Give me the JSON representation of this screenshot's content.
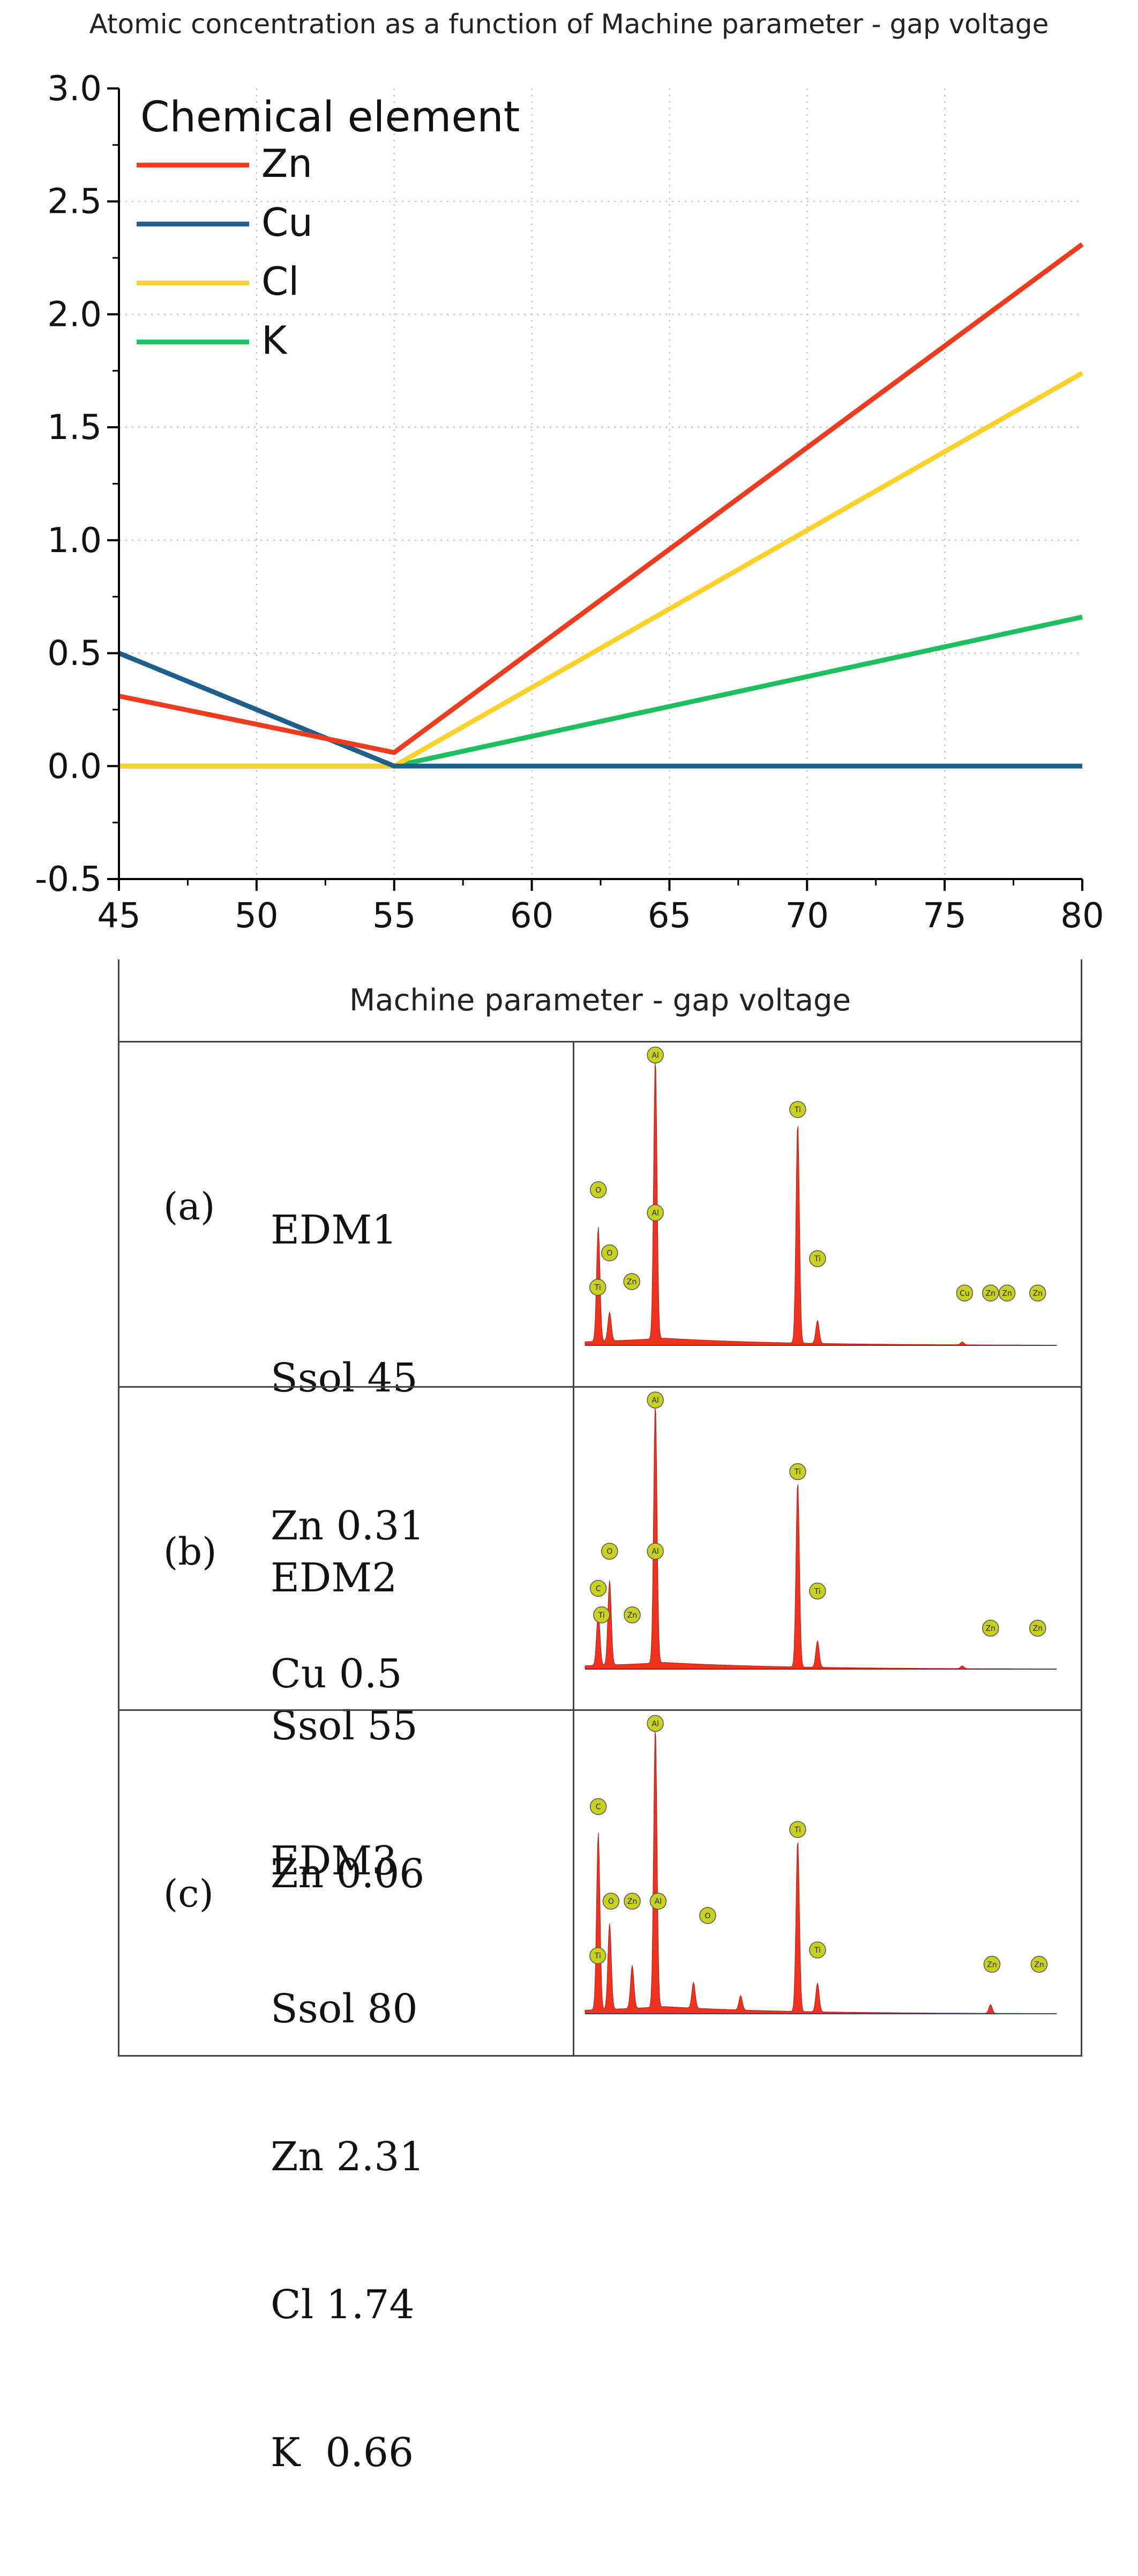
{
  "chart_data": {
    "type": "line",
    "title": "Atomic concentration as a function of Machine parameter - gap voltage",
    "xlabel": "Machine parameter - gap voltage",
    "ylabel": "",
    "x": [
      45,
      55,
      80
    ],
    "xlim": [
      45,
      80
    ],
    "ylim": [
      -0.5,
      3.0
    ],
    "xticks": [
      "45",
      "50",
      "55",
      "60",
      "65",
      "70",
      "75",
      "80"
    ],
    "yticks": [
      "3.0",
      "2.5",
      "2.0",
      "1.5",
      "1.0",
      "0.5",
      "0.0",
      "-0.5"
    ],
    "grid": true,
    "legend_title": "Chemical element",
    "legend_position": "top-left",
    "series": [
      {
        "name": "Zn",
        "color": "#f03c1e",
        "values": [
          0.31,
          0.06,
          2.31
        ]
      },
      {
        "name": "Cu",
        "color": "#1f5f8b",
        "values": [
          0.5,
          0.0,
          0.0
        ]
      },
      {
        "name": "Cl",
        "color": "#fcd12a",
        "values": [
          0.0,
          0.0,
          1.74
        ]
      },
      {
        "name": "K",
        "color": "#1dbf5e",
        "values": [
          0.0,
          0.0,
          0.66
        ]
      }
    ]
  },
  "table": {
    "rows": [
      {
        "tag": "(a)",
        "lines": [
          "EDM1",
          "Ssol 45",
          "Zn 0.31",
          "Cu 0.5"
        ],
        "spectrum": {
          "peak_labels": [
            "Al",
            "Ti",
            "O",
            "Al",
            "O",
            "Ti",
            "Zn",
            "Ti",
            "Cu",
            "Zn",
            "Zn",
            "Zn"
          ]
        }
      },
      {
        "tag": "(b)",
        "lines": [
          "EDM2",
          "Ssol 55",
          "Zn 0.06"
        ],
        "spectrum": {
          "peak_labels": [
            "Al",
            "Ti",
            "O",
            "Al",
            "C",
            "Ti",
            "Zn",
            "Ti",
            "Zn",
            "Zn"
          ]
        }
      },
      {
        "tag": "(c)",
        "lines": [
          "EDM3",
          "Ssol 80",
          "Zn 2.31",
          "Cl 1.74",
          "K  0.66"
        ],
        "spectrum": {
          "peak_labels": [
            "Al",
            "C",
            "Ti",
            "O",
            "Al",
            "Zn",
            "O",
            "Ti",
            "Ti",
            "Zn",
            "Zn"
          ]
        }
      }
    ]
  },
  "spectrum_colors": {
    "fill": "#f0321e",
    "marker": "#c8d21e"
  }
}
